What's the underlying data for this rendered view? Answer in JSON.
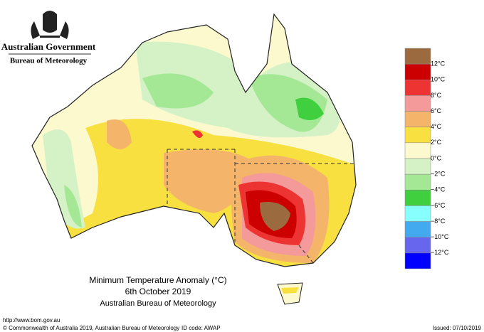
{
  "header": {
    "government": "Australian Government",
    "agency": "Bureau of Meteorology"
  },
  "map": {
    "title": "Minimum Temperature Anomaly (°C)",
    "date": "6th October 2019",
    "source": "Australian Bureau of Meteorology"
  },
  "legend": {
    "colors": [
      "#9b6b3f",
      "#cc0000",
      "#ee3333",
      "#f49a9a",
      "#f4b46a",
      "#f8e040",
      "#fdf9cf",
      "#d4f2c6",
      "#a4e895",
      "#3fcf3f",
      "#88ffff",
      "#44aaf0",
      "#6666ee",
      "#0000ff"
    ],
    "labels": [
      "12°C",
      "10°C",
      "8°C",
      "6°C",
      "4°C",
      "2°C",
      "0°C",
      "−2°C",
      "−4°C",
      "−6°C",
      "−8°C",
      "−10°C",
      "−12°C"
    ]
  },
  "footer": {
    "url": "http://www.bom.gov.au",
    "copyright": "© Commonwealth of Australia 2019, Australian Bureau of Meteorology",
    "id_code": "ID code: AWAP",
    "issued": "Issued: 07/10/2019"
  }
}
